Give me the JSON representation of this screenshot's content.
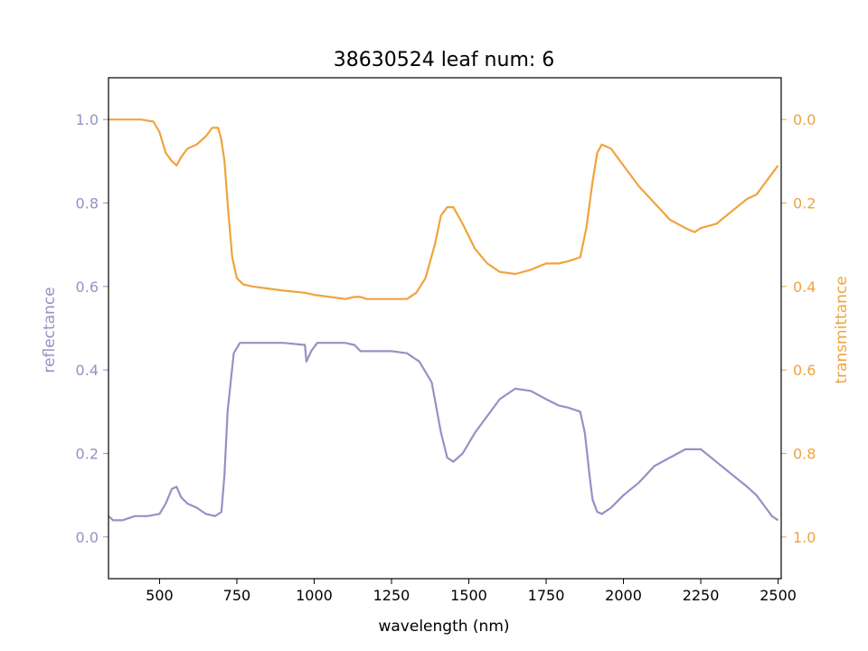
{
  "chart_data": {
    "type": "line",
    "title": "38630524 leaf num: 6",
    "xlabel": "wavelength (nm)",
    "ylabel_left": "reflectance",
    "ylabel_right": "transmittance",
    "xlim": [
      335,
      2510
    ],
    "ylim_left": [
      -0.1,
      1.1
    ],
    "ylim_right": [
      1.1,
      -0.1
    ],
    "right_axis_inverted": true,
    "grid": false,
    "x_ticks": [
      500,
      750,
      1000,
      1250,
      1500,
      1750,
      2000,
      2250,
      2500
    ],
    "y_ticks_left": [
      "0.0",
      "0.2",
      "0.4",
      "0.6",
      "0.8",
      "1.0"
    ],
    "y_ticks_right": [
      "0.0",
      "0.2",
      "0.4",
      "0.6",
      "0.8",
      "1.0"
    ],
    "colors": {
      "reflectance": "#9890c5",
      "transmittance": "#f0a33e"
    },
    "series": [
      {
        "name": "reflectance",
        "axis": "left",
        "x": [
          335,
          350,
          380,
          420,
          460,
          500,
          520,
          540,
          555,
          570,
          590,
          620,
          650,
          680,
          700,
          710,
          720,
          740,
          760,
          800,
          900,
          970,
          975,
          990,
          1010,
          1050,
          1100,
          1130,
          1150,
          1180,
          1200,
          1250,
          1300,
          1340,
          1380,
          1410,
          1430,
          1450,
          1480,
          1520,
          1560,
          1600,
          1650,
          1700,
          1750,
          1790,
          1820,
          1860,
          1875,
          1890,
          1900,
          1915,
          1930,
          1960,
          2000,
          2050,
          2100,
          2150,
          2200,
          2230,
          2250,
          2300,
          2350,
          2400,
          2430,
          2460,
          2480,
          2500
        ],
        "y": [
          0.05,
          0.04,
          0.04,
          0.05,
          0.05,
          0.055,
          0.08,
          0.115,
          0.12,
          0.095,
          0.08,
          0.07,
          0.055,
          0.05,
          0.06,
          0.15,
          0.3,
          0.44,
          0.465,
          0.465,
          0.465,
          0.46,
          0.42,
          0.445,
          0.465,
          0.465,
          0.465,
          0.46,
          0.445,
          0.445,
          0.445,
          0.445,
          0.44,
          0.42,
          0.37,
          0.25,
          0.19,
          0.18,
          0.2,
          0.25,
          0.29,
          0.33,
          0.355,
          0.35,
          0.33,
          0.315,
          0.31,
          0.3,
          0.25,
          0.15,
          0.09,
          0.06,
          0.055,
          0.07,
          0.1,
          0.13,
          0.17,
          0.19,
          0.21,
          0.21,
          0.21,
          0.18,
          0.15,
          0.12,
          0.1,
          0.07,
          0.05,
          0.04
        ]
      },
      {
        "name": "transmittance",
        "axis": "right",
        "x": [
          335,
          360,
          400,
          440,
          480,
          500,
          520,
          540,
          555,
          570,
          590,
          620,
          650,
          670,
          690,
          700,
          710,
          720,
          735,
          750,
          770,
          800,
          850,
          900,
          970,
          1000,
          1050,
          1100,
          1130,
          1150,
          1170,
          1200,
          1250,
          1300,
          1330,
          1360,
          1390,
          1410,
          1430,
          1450,
          1480,
          1520,
          1560,
          1600,
          1650,
          1700,
          1750,
          1790,
          1820,
          1860,
          1880,
          1900,
          1915,
          1930,
          1960,
          2000,
          2050,
          2100,
          2150,
          2200,
          2230,
          2250,
          2300,
          2350,
          2400,
          2430,
          2460,
          2480,
          2500
        ],
        "y": [
          0.0,
          0.0,
          0.0,
          0.0,
          0.005,
          0.03,
          0.08,
          0.1,
          0.11,
          0.09,
          0.07,
          0.06,
          0.04,
          0.02,
          0.02,
          0.05,
          0.1,
          0.2,
          0.33,
          0.38,
          0.395,
          0.4,
          0.405,
          0.41,
          0.415,
          0.42,
          0.425,
          0.43,
          0.425,
          0.425,
          0.43,
          0.43,
          0.43,
          0.43,
          0.415,
          0.38,
          0.3,
          0.23,
          0.21,
          0.21,
          0.25,
          0.31,
          0.345,
          0.365,
          0.37,
          0.36,
          0.345,
          0.345,
          0.34,
          0.33,
          0.26,
          0.15,
          0.08,
          0.06,
          0.07,
          0.11,
          0.16,
          0.2,
          0.24,
          0.26,
          0.27,
          0.26,
          0.25,
          0.22,
          0.19,
          0.18,
          0.15,
          0.13,
          0.11
        ]
      }
    ]
  }
}
